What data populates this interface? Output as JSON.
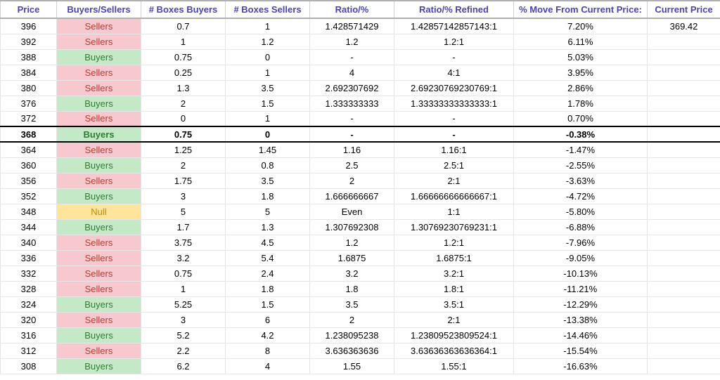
{
  "colors": {
    "header_text": "#4a3fbf",
    "sellers_bg": "#f7c8ce",
    "sellers_text": "#c0392b",
    "buyers_bg": "#c4e9c6",
    "buyers_text": "#2e7d32",
    "null_bg": "#ffe59a",
    "null_text": "#c68a00",
    "row_border": "#e6e6e6",
    "highlight_border": "#000000"
  },
  "columns": [
    "Price",
    "Buyers/Sellers",
    "# Boxes Buyers",
    "# Boxes Sellers",
    "Ratio/%",
    "Ratio/% Refined",
    "% Move From Current Price:",
    "Current Price"
  ],
  "current_price": "369.42",
  "highlight_price": "368",
  "rows": [
    {
      "price": "396",
      "bs": "Sellers",
      "boxes_buyers": "0.7",
      "boxes_sellers": "1",
      "ratio": "1.428571429",
      "ratio_refined": "1.42857142857143:1",
      "move": "7.20%"
    },
    {
      "price": "392",
      "bs": "Sellers",
      "boxes_buyers": "1",
      "boxes_sellers": "1.2",
      "ratio": "1.2",
      "ratio_refined": "1.2:1",
      "move": "6.11%"
    },
    {
      "price": "388",
      "bs": "Buyers",
      "boxes_buyers": "0.75",
      "boxes_sellers": "0",
      "ratio": "-",
      "ratio_refined": "-",
      "move": "5.03%"
    },
    {
      "price": "384",
      "bs": "Sellers",
      "boxes_buyers": "0.25",
      "boxes_sellers": "1",
      "ratio": "4",
      "ratio_refined": "4:1",
      "move": "3.95%"
    },
    {
      "price": "380",
      "bs": "Sellers",
      "boxes_buyers": "1.3",
      "boxes_sellers": "3.5",
      "ratio": "2.692307692",
      "ratio_refined": "2.69230769230769:1",
      "move": "2.86%"
    },
    {
      "price": "376",
      "bs": "Buyers",
      "boxes_buyers": "2",
      "boxes_sellers": "1.5",
      "ratio": "1.333333333",
      "ratio_refined": "1.33333333333333:1",
      "move": "1.78%"
    },
    {
      "price": "372",
      "bs": "Sellers",
      "boxes_buyers": "0",
      "boxes_sellers": "1",
      "ratio": "-",
      "ratio_refined": "-",
      "move": "0.70%"
    },
    {
      "price": "368",
      "bs": "Buyers",
      "boxes_buyers": "0.75",
      "boxes_sellers": "0",
      "ratio": "-",
      "ratio_refined": "-",
      "move": "-0.38%"
    },
    {
      "price": "364",
      "bs": "Sellers",
      "boxes_buyers": "1.25",
      "boxes_sellers": "1.45",
      "ratio": "1.16",
      "ratio_refined": "1.16:1",
      "move": "-1.47%"
    },
    {
      "price": "360",
      "bs": "Buyers",
      "boxes_buyers": "2",
      "boxes_sellers": "0.8",
      "ratio": "2.5",
      "ratio_refined": "2.5:1",
      "move": "-2.55%"
    },
    {
      "price": "356",
      "bs": "Sellers",
      "boxes_buyers": "1.75",
      "boxes_sellers": "3.5",
      "ratio": "2",
      "ratio_refined": "2:1",
      "move": "-3.63%"
    },
    {
      "price": "352",
      "bs": "Buyers",
      "boxes_buyers": "3",
      "boxes_sellers": "1.8",
      "ratio": "1.666666667",
      "ratio_refined": "1.66666666666667:1",
      "move": "-4.72%"
    },
    {
      "price": "348",
      "bs": "Null",
      "boxes_buyers": "5",
      "boxes_sellers": "5",
      "ratio": "Even",
      "ratio_refined": "1:1",
      "move": "-5.80%"
    },
    {
      "price": "344",
      "bs": "Buyers",
      "boxes_buyers": "1.7",
      "boxes_sellers": "1.3",
      "ratio": "1.307692308",
      "ratio_refined": "1.30769230769231:1",
      "move": "-6.88%"
    },
    {
      "price": "340",
      "bs": "Sellers",
      "boxes_buyers": "3.75",
      "boxes_sellers": "4.5",
      "ratio": "1.2",
      "ratio_refined": "1.2:1",
      "move": "-7.96%"
    },
    {
      "price": "336",
      "bs": "Sellers",
      "boxes_buyers": "3.2",
      "boxes_sellers": "5.4",
      "ratio": "1.6875",
      "ratio_refined": "1.6875:1",
      "move": "-9.05%"
    },
    {
      "price": "332",
      "bs": "Sellers",
      "boxes_buyers": "0.75",
      "boxes_sellers": "2.4",
      "ratio": "3.2",
      "ratio_refined": "3.2:1",
      "move": "-10.13%"
    },
    {
      "price": "328",
      "bs": "Sellers",
      "boxes_buyers": "1",
      "boxes_sellers": "1.8",
      "ratio": "1.8",
      "ratio_refined": "1.8:1",
      "move": "-11.21%"
    },
    {
      "price": "324",
      "bs": "Buyers",
      "boxes_buyers": "5.25",
      "boxes_sellers": "1.5",
      "ratio": "3.5",
      "ratio_refined": "3.5:1",
      "move": "-12.29%"
    },
    {
      "price": "320",
      "bs": "Sellers",
      "boxes_buyers": "3",
      "boxes_sellers": "6",
      "ratio": "2",
      "ratio_refined": "2:1",
      "move": "-13.38%"
    },
    {
      "price": "316",
      "bs": "Buyers",
      "boxes_buyers": "5.2",
      "boxes_sellers": "4.2",
      "ratio": "1.238095238",
      "ratio_refined": "1.23809523809524:1",
      "move": "-14.46%"
    },
    {
      "price": "312",
      "bs": "Sellers",
      "boxes_buyers": "2.2",
      "boxes_sellers": "8",
      "ratio": "3.636363636",
      "ratio_refined": "3.63636363636364:1",
      "move": "-15.54%"
    },
    {
      "price": "308",
      "bs": "Buyers",
      "boxes_buyers": "6.2",
      "boxes_sellers": "4",
      "ratio": "1.55",
      "ratio_refined": "1.55:1",
      "move": "-16.63%"
    }
  ]
}
